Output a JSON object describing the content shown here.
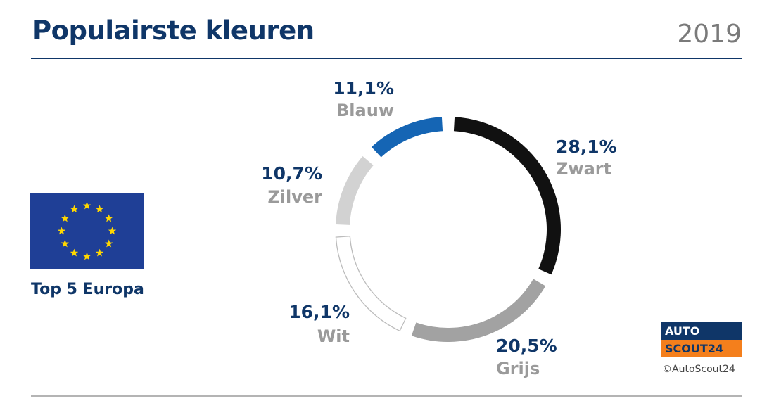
{
  "header": {
    "title": "Populairste kleuren",
    "year": "2019"
  },
  "region": {
    "label": "Top 5 Europa",
    "flag_icon": "eu-flag-icon"
  },
  "branding": {
    "logo_line1": "AUTO",
    "logo_line2": "SCOUT24",
    "copyright": "©AutoScout24"
  },
  "colors": {
    "title": "#0f3668",
    "year": "#7a7a7a",
    "label_gray": "#9a9a9a",
    "logo_blue": "#0f3668",
    "logo_orange": "#f47f1c",
    "flag_blue": "#1f3f96",
    "flag_star": "#ffd700"
  },
  "chart_data": {
    "type": "pie",
    "variant": "donut",
    "title": "Populairste kleuren",
    "subtitle": "Top 5 Europa",
    "categories": [
      "Zwart",
      "Grijs",
      "Wit",
      "Zilver",
      "Blauw"
    ],
    "values": [
      28.1,
      20.5,
      16.1,
      10.7,
      11.1
    ],
    "value_labels": [
      "28,1%",
      "20,5%",
      "16,1%",
      "10,7%",
      "11,1%"
    ],
    "slice_colors": [
      "#111111",
      "#a2a2a2",
      "#ffffff",
      "#d2d2d2",
      "#1565b4"
    ]
  }
}
